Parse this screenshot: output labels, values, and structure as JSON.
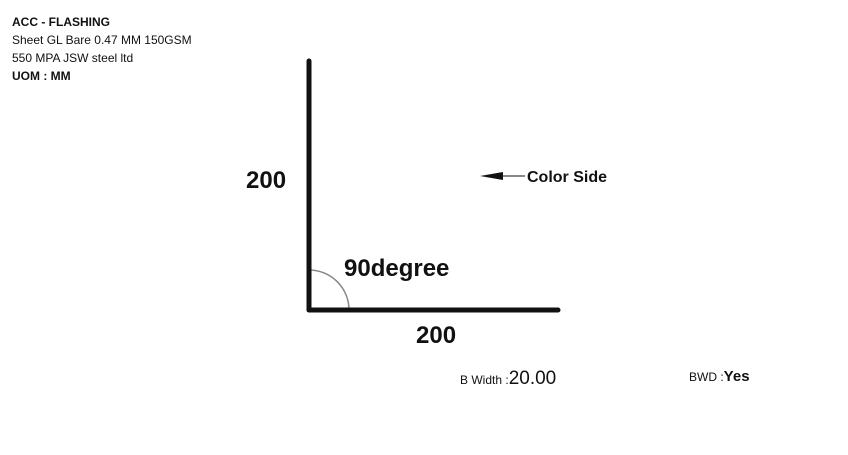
{
  "info": {
    "title": "ACC - FLASHING",
    "line1": "Sheet GL Bare 0.47 MM 150GSM",
    "line2": "550 MPA JSW steel ltd",
    "uom": "UOM : MM"
  },
  "drawing": {
    "vertical_length": "200",
    "horizontal_length": "200",
    "angle_label": "90degree",
    "color_side_label": "Color Side"
  },
  "footer": {
    "b_width_label": "B Width :",
    "b_width_value": "20.00",
    "bwd_label": "BWD :",
    "bwd_value": "Yes"
  },
  "colors": {
    "line": "#111111",
    "arc": "#888888"
  }
}
